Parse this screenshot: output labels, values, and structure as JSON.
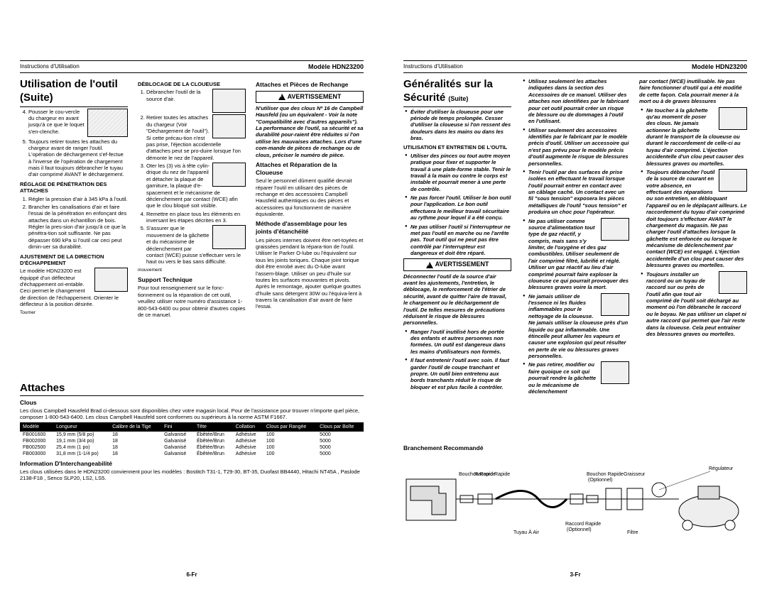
{
  "common": {
    "instructions": "Instructions d'Utilisation",
    "model": "Modèle HDN23200",
    "avertissement": "AVERTISSEMENT"
  },
  "left": {
    "pagenum": "6-Fr",
    "title1_a": "Utilisation de l'outil",
    "title1_b": "(Suite)",
    "ol4": "Pousser le cou-vercle du chargeur en avant jusqu'à ce que le loquet s'en-clenche.",
    "ol5": "Toujours retirer toutes les attaches du chargeur avant de ranger l'outil. L'opération de déchargement s'ef-fectue à l'inverse de l'opération de chargement mais il faut toujours débrancher le tuyau d'air comprimé AVANT le déchargement.",
    "h4a": "RÉGLAGE DE PÉNÉTRATION DES ATTACHES",
    "pen1": "Régler la pression d'air à 345 kPa à l'outil.",
    "pen2": "Brancher les canalisations d'air et faire l'essai de la pénétration en enfonçant des attaches dans un échantillon de bois. Régler la pres-sion d'air jusqu'à ce que la pénétra-tion soit suffisante. Ne pas dépasser 690 kPa si l'outil car ceci peut dimin-uer sa durabilité.",
    "h4b": "AJUSTEMENT DE LA DIRECTION D'ÉCHAPPEMENT",
    "exh": "Le modèle HDN23200 est équippé d'un déflecteur d'échappement ori-entable. Ceci permet le changement de direction de l'échappement. Orienter le déflecteur à la position désirée.",
    "turn": "Tourner",
    "h4c": "DÉBLOCAGE DE LA CLOUEUSE",
    "db1": "Débrancher l'outil de la source d'air.",
    "db2": "Retirer toutes les attaches du chargeur (Voir \"Déchargement de l'outil\"). Si cette précau-tion n'est pas prise, l'éjection accidentelle d'attaches peut se pro-duire lorsque l'on démonte le nez de l'appareil.",
    "db3": "Oter les (3) vis à tête cylin-drique du nez de l'appareil et détacher la plaque de garniture, la plaque d'e-spacement et le mécanisme de déclenchement par contact (WCE) afin que le clou bloqué soit visible.",
    "db4": "Remettre en place tous les éléments en inversant les étapes décrites en 3.",
    "db5": "S'assurer que le mouvement de la gâchette et du mécanisme de déclenchement par contact (WCE) puisse s'effectuer vers le haut ou vers le bas sans difficulté.",
    "mov": "mouvement",
    "h3a": "Support Technique",
    "support": "Pour tout renseignement sur le fonc-tionnement ou la réparation de cet outil, veuillez utiliser notre numéro d'assistance 1-800-543-6400 ou pour obtenir d'autres copies de ce manuel.",
    "h3b": "Attaches et Pièces de Rechange",
    "warn1": "N'utiliser que des clous Nº 16 de Campbell Hausfeld (ou un équivalent - Voir la note \"Compatibilité avec d'autres appareils\"). La performance de l'outil, sa sécurité et sa durabilité pour-raient être réduites si l'on utilise les mauvaises attaches. Lors d'une com-mande de pièces de rechange ou de clous, préciser le numéro de pièce.",
    "h3c": "Attaches et Réparation de la Cloueuse",
    "rep": "Seul le personnel dûment qualifié devrait réparer l'outil en utilisant des pièces de rechange et des accessoires Campbell Hausfeld authentiques ou des pièces et accessoires qui fonctionnent de manière équivalente.",
    "h3d": "Méthode d'assemblage pour les joints d'étanchéité",
    "joints": "Les pièces internes doivent être net-toyées et graissées pendant la répara-tion de l'outil. Utiliser le Parker O-lube ou l'équivalent sur tous les joints toriques. Chaque joint torique doit être enrobé avec du O-lube avant l'assem-blage. Utiliser un peu d'huile sur toutes les surfaces mouvantes et pivots. Après le remontage, ajouter quelque gouttes d'huile sans détergent 30W ou l'équiva-lent à travers la canalisation d'air avant de faire l'essai.",
    "title2": "Attaches",
    "h3e": "Clous",
    "clousp": "Les clous Campbell Hausfeld Brad ci-dessous sont disponibles chez votre magasin local. Pour de l'assistance pour trouver n'importe quel pièce, composer 1-800-543-6400. Les clous Campbell Hausfeld sont conformes ou supérieurs à la norme ASTM F1667.",
    "tbl": {
      "headers": [
        "Modèle",
        "Longueur",
        "Calibre de la Tige",
        "Fini",
        "Tête",
        "Collation",
        "Clous par Rangée",
        "Clous par Boîte"
      ],
      "rows": [
        [
          "FB001600",
          "15,9 mm (5/8 po)",
          "18",
          "Galvanisé",
          "Ébêtée/Brun",
          "Adhésive",
          "100",
          "5000"
        ],
        [
          "FB002000",
          "19,1 mm (3/4 po)",
          "18",
          "Galvanisé",
          "Ébêtée/Brun",
          "Adhésive",
          "100",
          "5000"
        ],
        [
          "FB002500",
          "25,4 mm (1 po)",
          "18",
          "Galvanisé",
          "Ébêtée/Brun",
          "Adhésive",
          "100",
          "5000"
        ],
        [
          "FB003000",
          "31,8 mm (1-1/4 po)",
          "18",
          "Galvanisé",
          "Ébêtée/Brun",
          "Adhésive",
          "100",
          "5000"
        ]
      ]
    },
    "h3f": "Information D'Interchangeabilité",
    "compat": "Les clous utilisées dans le HDN23200 conviennent pour les modèles : Bostitch T31-1, T29-30, BT-35, Duofast BB4440, Hitachi NT45A , Paslode 2138-F18 , Senco SLP20, LS2, LS5."
  },
  "right": {
    "pagenum": "3-Fr",
    "title": "Généralités sur la Sécurité",
    "suite": "(Suite)",
    "b1": "Éviter d'utiliser la cloueuse pour une période de temps prolongée. Cesser d'utiliser la cloueuse si l'on ressent des douleurs dans les mains ou dans les bras.",
    "h4a": "UTILISATION ET ENTRETIEN DE L'OUTIL",
    "b2": "Utiliser des pinces ou tout autre moyen pratique pour fixer et supporter le travail à une plate-forme stable. Tenir le travail à la main ou contre le corps est instable et pourrait mener à une perte de contrôle.",
    "b3": "Ne pas forcer l'outil. Utiliser le bon outil pour l'application. Le bon outil effectuera le meilleur travail sécuritaire au rythme pour lequel il a été conçu.",
    "b4": "Ne pas utiliser l'outil si l'interrupteur ne met pas l'outil en marche ou ne l'arrête pas. Tout outil qui ne peut pas être contrôlé par l'interrupteur est dangereux et doit être réparé.",
    "warn2": "Déconnecter l'outil de la source d'air avant les ajustements, l'entretien, le déblocage, le renforcement de l'étrier de sécurité, avant de quitter l'aire de travail, le chargement ou le déchargement de l'outil. De telles mesures de précautions réduisent le risque de blessures personnelles.",
    "b5": "Ranger l'outil inutilisé hors de portée des enfants et autres personnes non formées. Un outil est dangereux dans les mains d'utilisateurs non formés.",
    "b6": "Il faut entretenir l'outil avec soin. Il faut garder l'outil de coupe tranchant et propre. Un outil bien entretenu aux bords tranchants réduit le risque de bloquer et est plus facile à contrôler.",
    "b7": "Utilisez seulement les attaches indiquées dans la section des Accessoires de ce manuel. Utiliser des attaches non identifiées par le fabricant pour cet outil pourrait créer un risque de blessure ou de dommages à l'outil en l'utilisant.",
    "b8": "Utiliser seulement des accessoires identifiés par le fabricant par le modèle précis d'outil. Utiliser un accessoire qui n'est pas prévu pour le modèle précis d'outil augmente le risque de blessures personnelles.",
    "b9": "Tenir l'outil par des surfaces de prise isolées en effectuant le travail lorsque l'outil pourrait entrer en contact avec un câblage caché. Un contact avec un fil \"sous tension\" exposera les pièces métalliques de l'outil \"sous tension\" et produira un choc pour l'opérateur.",
    "b10": "Ne pas utiliser comme source d'alimentation tout type de gaz réactif, y compris, mais sans s'y limiter, de l'oxygène et des gaz combustibles. Utiliser seulement de l'air comprimé filtré, lubrifié et réglé. Utiliser un gaz réactif au lieu d'air comprimé pourrait faire exploser la cloueuse ce qui pourrait provoquer des blessures graves voire la mort.",
    "b11": "Ne jamais utiliser de l'essence ni les fluides inflammables pour le nettoyage de la cloueuse. Ne jamais utiliser la cloueuse près d'un liquide ou gaz inflammable. Une étincelle peut allumer les vapeurs et causer une explosion qui peut résulter en perte de vie ou blessures graves personnelles.",
    "b12": "Ne pas retirer, modifier ou faire quoique ce soit qui pourrait rendre la gâchette ou le mécanisme de déclenchement",
    "b12c": "par contact (WCE) inutilisable. Ne pas faire fonctionner d'outil qui a été modifié de cette façon. Cela pourrait mener à la mort ou à de graves blessures",
    "b13": "Ne toucher à la gâchette qu'au moment de poser des clous. Ne jamais actionner la gâchette durant le transport de la cloueuse ou durant le raccordement de celle-ci au tuyau d'air comprimé. L'éjection accidentelle d'un clou peut causer des blessures graves ou mortelles.",
    "b14": "Toujours débrancher l'outil de la source de courant en votre absence, en effectuant des réparations ou son entretien, en débloquant l'appareil ou en le déplaçant ailleurs. Le raccordement du tuyau d'air comprimé doit toujours s'effectuer AVANT le chargement du magasin. Ne pas charger l'outil d'attaches lorsque la gâchette est enfoncée ou lorsque le mécanisme de déclenchement par contact (WCE) est engagé. L'éjection accidentelle d'un clou peut causer des blessures graves ou mortelles.",
    "b15": "Toujours installer un raccord ou un tuyau de raccord sur ou près de l'outil afin que tout air comprimé de l'outil soit déchargé au moment où l'on débranche le raccord ou le boyau. Ne pas utiliser un clapet ni autre raccord qui permet que l'air reste dans la cloueuse. Cela peut entraîner des blessures graves ou mortelles.",
    "branch_h": "Branchement Recommandé",
    "labels": {
      "bouchon_rapide": "Bouchon Rapide",
      "raccord_rapide": "Raccord Rapide",
      "optionnel": "(Optionnel)",
      "tuyau": "Tuyau À Air",
      "filtre": "Filtre",
      "graisseur": "Graisseur",
      "regulateur": "Régulateur"
    }
  }
}
